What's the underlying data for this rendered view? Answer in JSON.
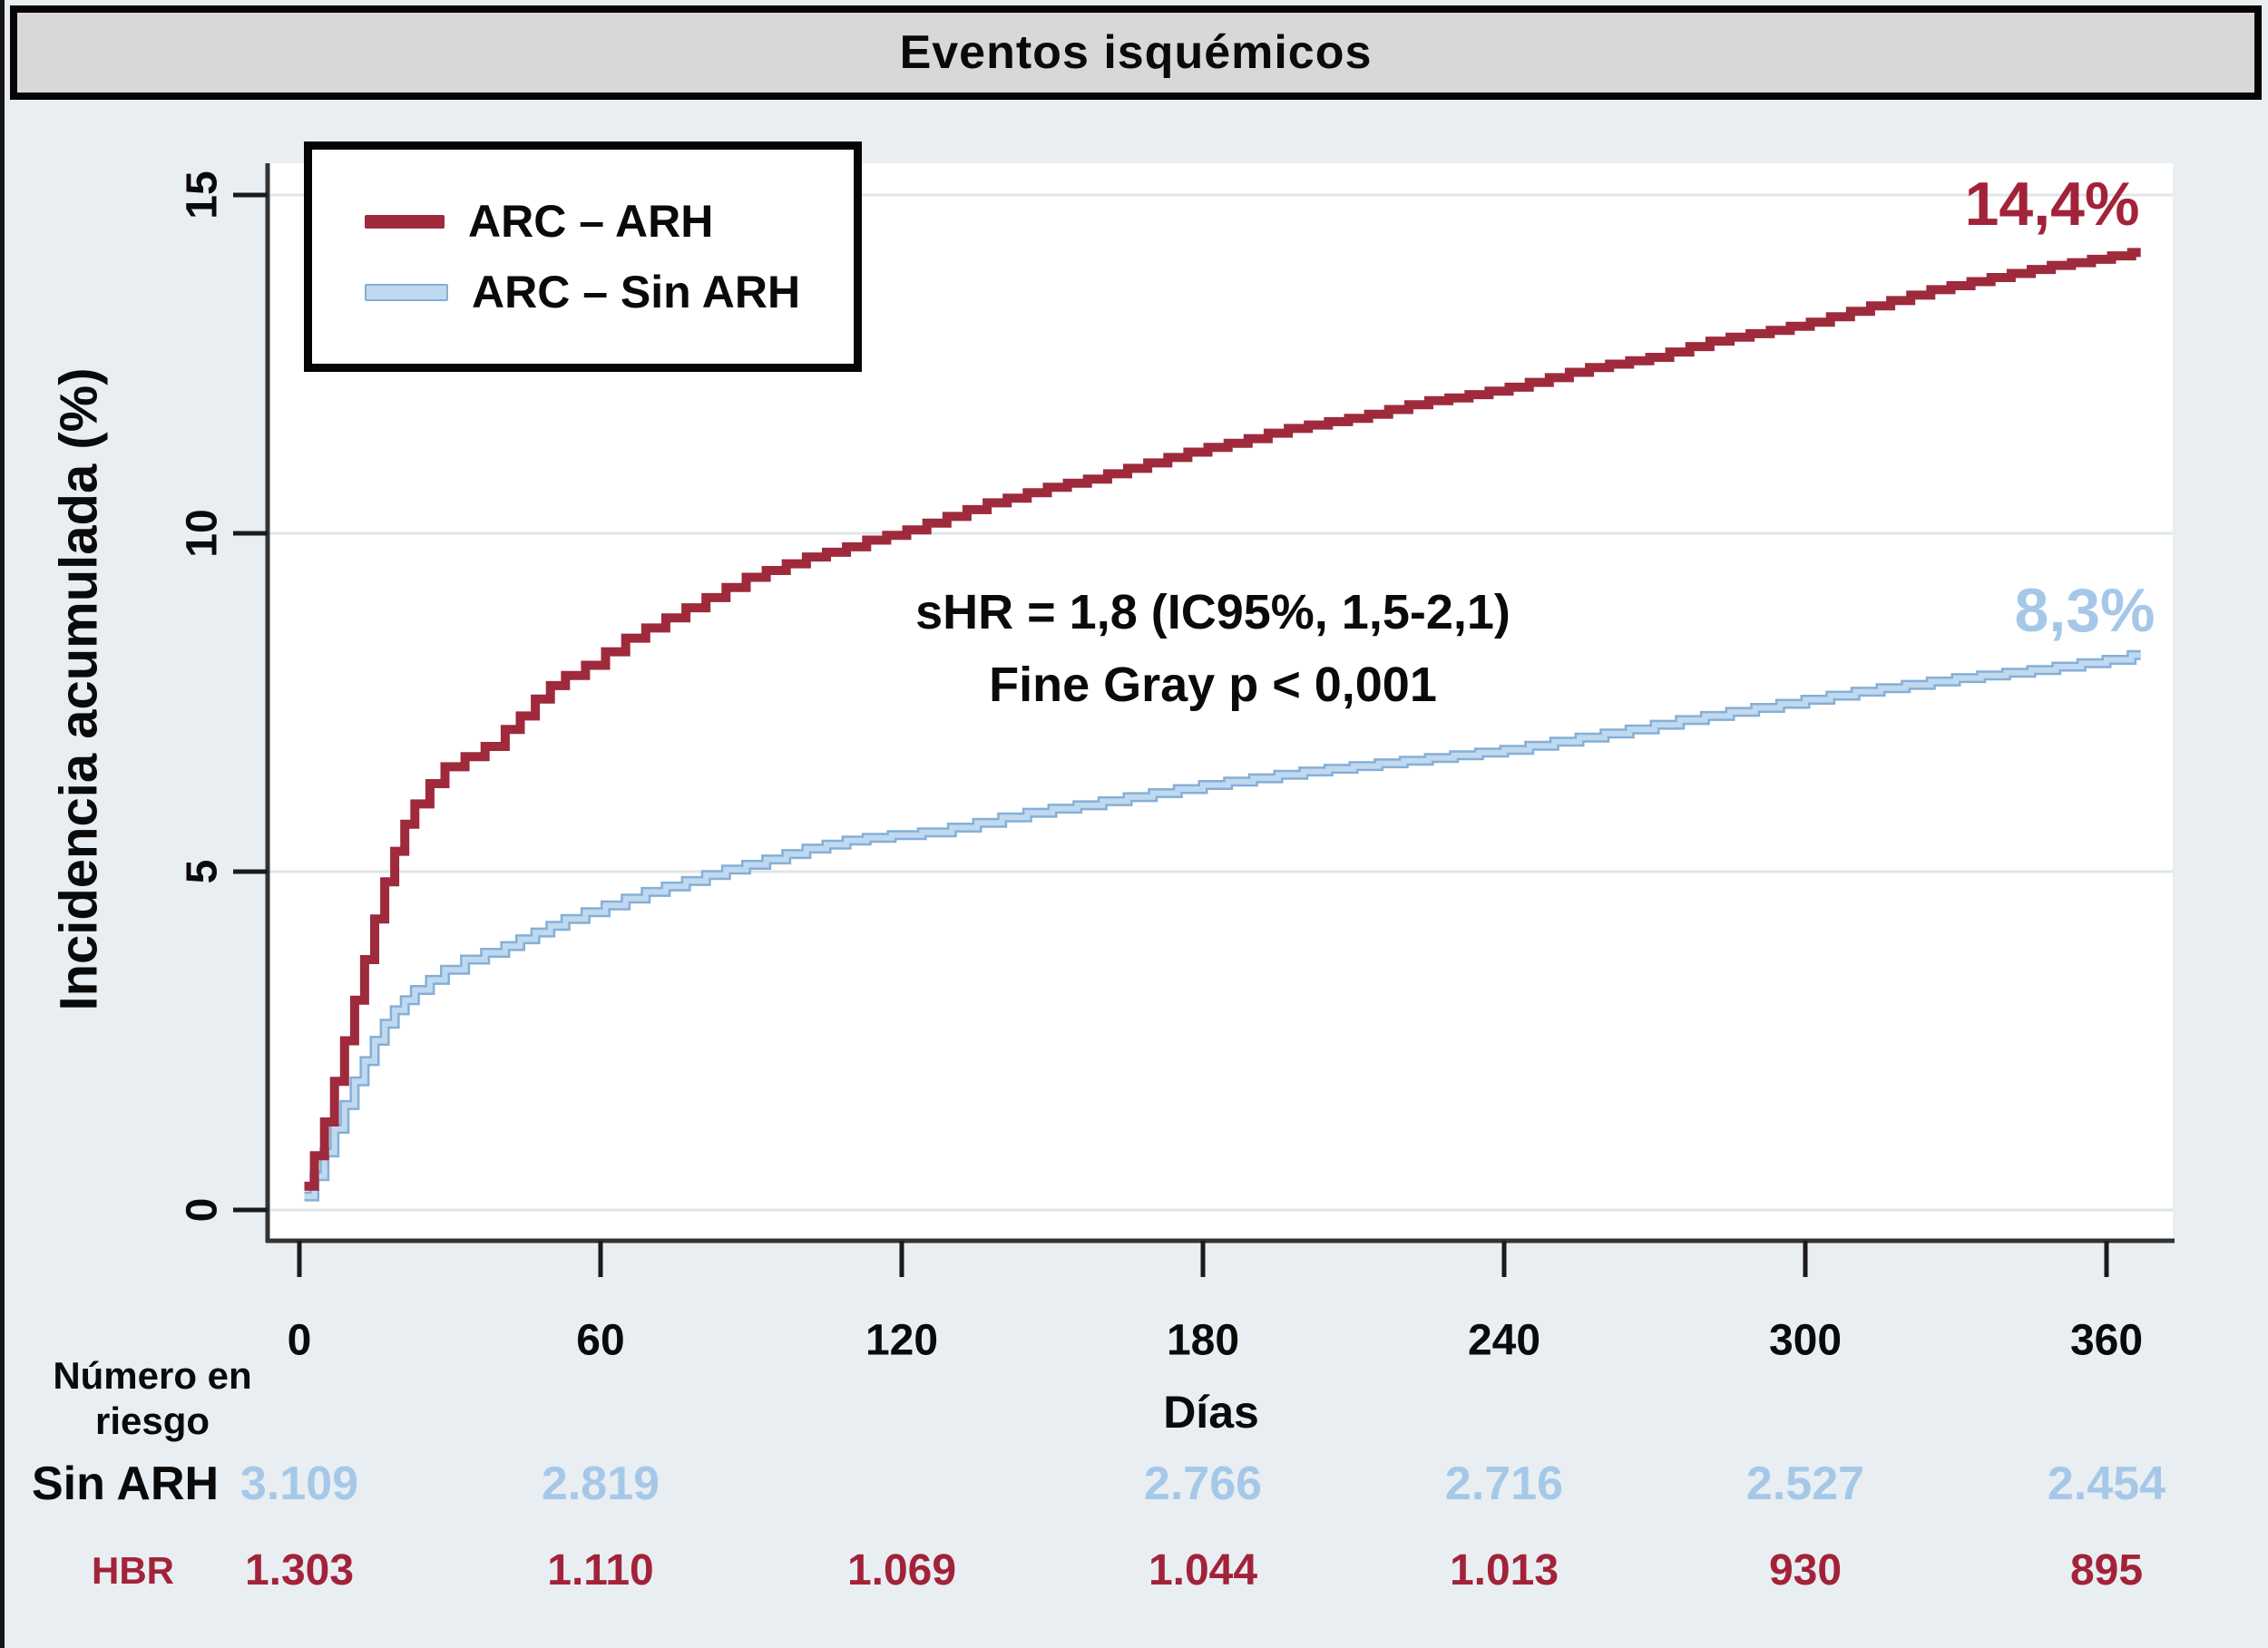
{
  "title": "Eventos isquémicos",
  "y_axis": {
    "title": "Incidencia acumulada (%)",
    "ticks": [
      "0",
      "5",
      "10",
      "15"
    ],
    "tick_values": [
      0,
      5,
      10,
      15
    ]
  },
  "x_axis": {
    "title": "Días",
    "ticks": [
      "0",
      "60",
      "120",
      "180",
      "240",
      "300",
      "360"
    ],
    "tick_values": [
      0,
      60,
      120,
      180,
      240,
      300,
      360
    ]
  },
  "legend": {
    "arh_label": "ARC – ARH",
    "sin_arh_label": "ARC – Sin ARH"
  },
  "annotation": {
    "line1": "sHR = 1,8 (IC95%, 1,5-2,1)",
    "line2": "Fine Gray p < 0,001"
  },
  "end_labels": {
    "arh": "14,4%",
    "sin_arh": "8,3%"
  },
  "risk_table": {
    "header_line1": "Número en",
    "header_line2": "riesgo",
    "rows": [
      {
        "label": "Sin ARH",
        "color": "blue",
        "values": [
          {
            "day": 0,
            "value": "3.109"
          },
          {
            "day": 60,
            "value": "2.819"
          },
          {
            "day": 180,
            "value": "2.766"
          },
          {
            "day": 240,
            "value": "2.716"
          },
          {
            "day": 300,
            "value": "2.527"
          },
          {
            "day": 360,
            "value": "2.454"
          }
        ]
      },
      {
        "label": "HBR",
        "color": "red",
        "values": [
          {
            "day": 0,
            "value": "1.303"
          },
          {
            "day": 60,
            "value": "1.110"
          },
          {
            "day": 120,
            "value": "1.069"
          },
          {
            "day": 180,
            "value": "1.044"
          },
          {
            "day": 240,
            "value": "1.013"
          },
          {
            "day": 300,
            "value": "930"
          },
          {
            "day": 360,
            "value": "895"
          }
        ]
      }
    ]
  },
  "colors": {
    "red": "#9e2a3c",
    "red_text": "#a22339",
    "blue_edge": "#86afd6",
    "blue_fill": "#bfd9f0",
    "blue_text": "#a6c8e8",
    "grid": "#dfe5e8",
    "axis": "#333333",
    "tick": "#1a1a1a",
    "plot_bg": "#ffffff",
    "page_bg": "#e9eef2",
    "titlebar_bg": "#d8d8d8"
  },
  "chart_data": {
    "type": "line",
    "step": true,
    "title": "Eventos isquémicos",
    "xlabel": "Días",
    "ylabel": "Incidencia acumulada (%)",
    "xlim": [
      0,
      368
    ],
    "ylim": [
      0,
      15
    ],
    "x_ticks": [
      0,
      60,
      120,
      180,
      240,
      300,
      360
    ],
    "y_ticks": [
      0,
      5,
      10,
      15
    ],
    "grid": true,
    "legend_position": "top-left",
    "annotations": [
      "sHR = 1,8 (IC95%, 1,5-2,1)",
      "Fine Gray p < 0,001"
    ],
    "series": [
      {
        "name": "ARC – ARH",
        "color": "#9e2a3c",
        "final_label": "14,4%",
        "final_value": 14.4,
        "points": [
          [
            1,
            0.35
          ],
          [
            3,
            0.8
          ],
          [
            5,
            1.3
          ],
          [
            7,
            1.9
          ],
          [
            9,
            2.5
          ],
          [
            11,
            3.1
          ],
          [
            13,
            3.7
          ],
          [
            15,
            4.3
          ],
          [
            17,
            4.85
          ],
          [
            19,
            5.3
          ],
          [
            21,
            5.7
          ],
          [
            23,
            6.0
          ],
          [
            26,
            6.3
          ],
          [
            29,
            6.55
          ],
          [
            33,
            6.7
          ],
          [
            37,
            6.85
          ],
          [
            41,
            7.1
          ],
          [
            44,
            7.3
          ],
          [
            47,
            7.55
          ],
          [
            50,
            7.75
          ],
          [
            53,
            7.9
          ],
          [
            57,
            8.05
          ],
          [
            61,
            8.25
          ],
          [
            65,
            8.45
          ],
          [
            69,
            8.6
          ],
          [
            73,
            8.75
          ],
          [
            77,
            8.9
          ],
          [
            81,
            9.05
          ],
          [
            85,
            9.2
          ],
          [
            89,
            9.35
          ],
          [
            93,
            9.45
          ],
          [
            97,
            9.55
          ],
          [
            101,
            9.65
          ],
          [
            105,
            9.72
          ],
          [
            109,
            9.8
          ],
          [
            113,
            9.9
          ],
          [
            117,
            9.97
          ],
          [
            121,
            10.05
          ],
          [
            125,
            10.15
          ],
          [
            129,
            10.25
          ],
          [
            133,
            10.35
          ],
          [
            137,
            10.45
          ],
          [
            141,
            10.52
          ],
          [
            145,
            10.6
          ],
          [
            149,
            10.68
          ],
          [
            153,
            10.74
          ],
          [
            157,
            10.8
          ],
          [
            161,
            10.88
          ],
          [
            165,
            10.96
          ],
          [
            169,
            11.04
          ],
          [
            173,
            11.12
          ],
          [
            177,
            11.2
          ],
          [
            181,
            11.27
          ],
          [
            185,
            11.33
          ],
          [
            189,
            11.4
          ],
          [
            193,
            11.48
          ],
          [
            197,
            11.55
          ],
          [
            201,
            11.6
          ],
          [
            205,
            11.65
          ],
          [
            209,
            11.7
          ],
          [
            213,
            11.76
          ],
          [
            217,
            11.83
          ],
          [
            221,
            11.9
          ],
          [
            225,
            11.96
          ],
          [
            229,
            12.0
          ],
          [
            233,
            12.05
          ],
          [
            237,
            12.1
          ],
          [
            241,
            12.16
          ],
          [
            245,
            12.23
          ],
          [
            249,
            12.3
          ],
          [
            253,
            12.38
          ],
          [
            257,
            12.45
          ],
          [
            261,
            12.5
          ],
          [
            265,
            12.55
          ],
          [
            269,
            12.6
          ],
          [
            273,
            12.68
          ],
          [
            277,
            12.76
          ],
          [
            281,
            12.84
          ],
          [
            285,
            12.9
          ],
          [
            289,
            12.95
          ],
          [
            293,
            13.0
          ],
          [
            297,
            13.06
          ],
          [
            301,
            13.12
          ],
          [
            305,
            13.2
          ],
          [
            309,
            13.28
          ],
          [
            313,
            13.36
          ],
          [
            317,
            13.44
          ],
          [
            321,
            13.52
          ],
          [
            325,
            13.6
          ],
          [
            329,
            13.66
          ],
          [
            333,
            13.72
          ],
          [
            337,
            13.78
          ],
          [
            341,
            13.84
          ],
          [
            345,
            13.9
          ],
          [
            349,
            13.96
          ],
          [
            353,
            14.0
          ],
          [
            357,
            14.05
          ],
          [
            361,
            14.1
          ],
          [
            365,
            14.15
          ]
        ]
      },
      {
        "name": "ARC – Sin ARH",
        "color": "#bfd9f0",
        "final_label": "8,3%",
        "final_value": 8.3,
        "points": [
          [
            1,
            0.2
          ],
          [
            3,
            0.5
          ],
          [
            5,
            0.85
          ],
          [
            7,
            1.2
          ],
          [
            9,
            1.55
          ],
          [
            11,
            1.9
          ],
          [
            13,
            2.2
          ],
          [
            15,
            2.5
          ],
          [
            17,
            2.75
          ],
          [
            19,
            2.95
          ],
          [
            21,
            3.1
          ],
          [
            23,
            3.25
          ],
          [
            26,
            3.4
          ],
          [
            29,
            3.55
          ],
          [
            33,
            3.7
          ],
          [
            37,
            3.8
          ],
          [
            41,
            3.9
          ],
          [
            44,
            4.0
          ],
          [
            47,
            4.1
          ],
          [
            50,
            4.2
          ],
          [
            53,
            4.3
          ],
          [
            57,
            4.4
          ],
          [
            61,
            4.5
          ],
          [
            65,
            4.6
          ],
          [
            69,
            4.7
          ],
          [
            73,
            4.78
          ],
          [
            77,
            4.86
          ],
          [
            81,
            4.95
          ],
          [
            85,
            5.03
          ],
          [
            89,
            5.1
          ],
          [
            93,
            5.18
          ],
          [
            97,
            5.26
          ],
          [
            101,
            5.34
          ],
          [
            105,
            5.4
          ],
          [
            109,
            5.46
          ],
          [
            113,
            5.5
          ],
          [
            118,
            5.54
          ],
          [
            124,
            5.58
          ],
          [
            130,
            5.65
          ],
          [
            135,
            5.72
          ],
          [
            140,
            5.8
          ],
          [
            145,
            5.87
          ],
          [
            150,
            5.93
          ],
          [
            155,
            5.98
          ],
          [
            160,
            6.04
          ],
          [
            165,
            6.1
          ],
          [
            170,
            6.16
          ],
          [
            175,
            6.22
          ],
          [
            180,
            6.28
          ],
          [
            185,
            6.33
          ],
          [
            190,
            6.38
          ],
          [
            195,
            6.43
          ],
          [
            200,
            6.48
          ],
          [
            205,
            6.52
          ],
          [
            210,
            6.56
          ],
          [
            215,
            6.6
          ],
          [
            220,
            6.64
          ],
          [
            225,
            6.68
          ],
          [
            230,
            6.72
          ],
          [
            235,
            6.76
          ],
          [
            240,
            6.8
          ],
          [
            245,
            6.86
          ],
          [
            250,
            6.92
          ],
          [
            255,
            6.98
          ],
          [
            260,
            7.04
          ],
          [
            265,
            7.1
          ],
          [
            270,
            7.17
          ],
          [
            275,
            7.24
          ],
          [
            280,
            7.3
          ],
          [
            285,
            7.36
          ],
          [
            290,
            7.42
          ],
          [
            295,
            7.48
          ],
          [
            300,
            7.54
          ],
          [
            305,
            7.6
          ],
          [
            310,
            7.66
          ],
          [
            315,
            7.71
          ],
          [
            320,
            7.76
          ],
          [
            325,
            7.81
          ],
          [
            330,
            7.86
          ],
          [
            335,
            7.9
          ],
          [
            340,
            7.94
          ],
          [
            345,
            7.98
          ],
          [
            350,
            8.03
          ],
          [
            355,
            8.08
          ],
          [
            360,
            8.13
          ],
          [
            365,
            8.2
          ]
        ]
      }
    ],
    "number_at_risk": {
      "days": [
        0,
        60,
        120,
        180,
        240,
        300,
        360
      ],
      "Sin ARH": [
        3109,
        2819,
        null,
        2766,
        2716,
        2527,
        2454
      ],
      "HBR": [
        1303,
        1110,
        1069,
        1044,
        1013,
        930,
        895
      ]
    }
  }
}
